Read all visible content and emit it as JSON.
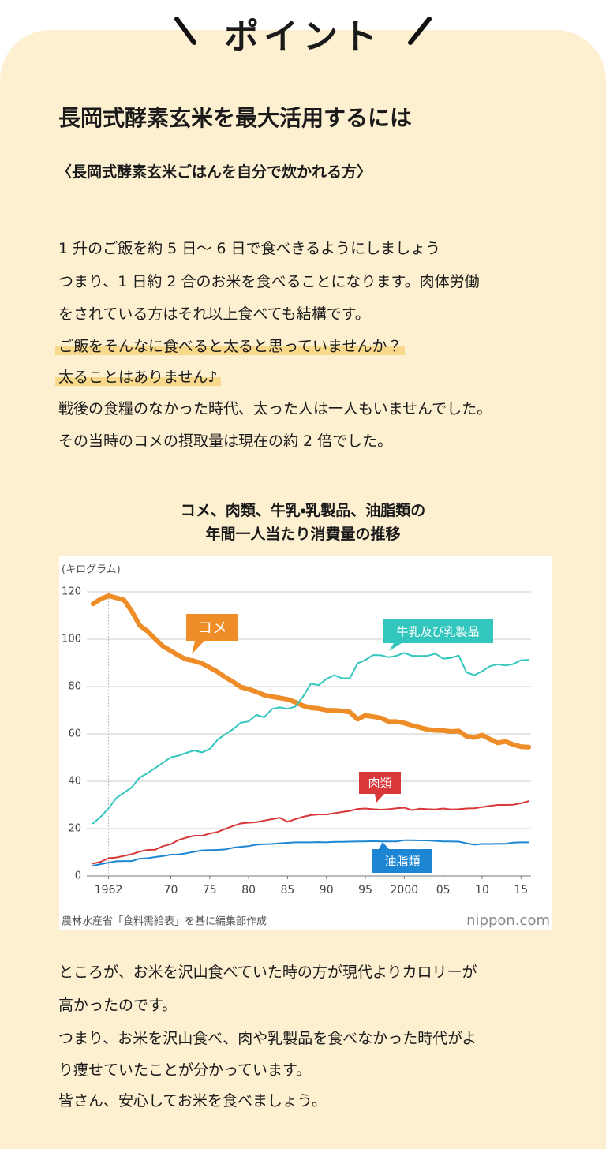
{
  "header": {
    "label": "ポイント"
  },
  "heading": "長岡式酵素玄米を最大活用するには",
  "subheading": "〈長岡式酵素玄米ごはんを自分で炊かれる方〉",
  "paragraphs_1": [
    "1 升のご飯を約 5 日〜 6 日で食べきるようにしましょう",
    "つまり、1 日約 2 合のお米を食べることになります。肉体労働",
    "をされている方はそれ以上食べても結構です。",
    "ご飯をそんなに食べると太ると思っていませんか？",
    "太ることはありません♪",
    "戦後の食糧のなかった時代、太った人は一人もいませんでした。",
    "その当時のコメの摂取量は現在の約 2 倍でした。"
  ],
  "chart_data": {
    "type": "line",
    "title": [
      "コメ、肉類、牛乳・乳製品、油脂類の",
      "年間一人当たり消費量の推移"
    ],
    "y_label": "(キログラム)",
    "x": [
      1960,
      1961,
      1962,
      1963,
      1964,
      1965,
      1966,
      1967,
      1968,
      1969,
      1970,
      1971,
      1972,
      1973,
      1974,
      1975,
      1976,
      1977,
      1978,
      1979,
      1980,
      1981,
      1982,
      1983,
      1984,
      1985,
      1986,
      1987,
      1988,
      1989,
      1990,
      1991,
      1992,
      1993,
      1994,
      1995,
      1996,
      1997,
      1998,
      1999,
      2000,
      2001,
      2002,
      2003,
      2004,
      2005,
      2006,
      2007,
      2008,
      2009,
      2010,
      2011,
      2012,
      2013,
      2014,
      2015,
      2016
    ],
    "xlim": [
      1959,
      2017
    ],
    "xticks": [
      1962,
      {
        "value": 1970,
        "label": "70"
      },
      {
        "value": 1975,
        "label": "75"
      },
      {
        "value": 1980,
        "label": "80"
      },
      {
        "value": 1985,
        "label": "85"
      },
      {
        "value": 1990,
        "label": "90"
      },
      {
        "value": 1995,
        "label": "95"
      },
      2000,
      {
        "value": 2005,
        "label": "05"
      },
      {
        "value": 2010,
        "label": "10"
      },
      {
        "value": 2015,
        "label": "15"
      }
    ],
    "ylim": [
      0,
      120
    ],
    "yticks": [
      0,
      20,
      40,
      60,
      80,
      100,
      120
    ],
    "grid": true,
    "series": [
      {
        "name": "コメ",
        "color": "#ee8c27",
        "values": [
          114.9,
          117.0,
          118.3,
          117.5,
          116.5,
          111.7,
          105.8,
          103.4,
          100.1,
          97.0,
          95.1,
          93.1,
          91.5,
          90.8,
          89.8,
          88.0,
          86.2,
          83.9,
          82.0,
          79.8,
          78.9,
          77.8,
          76.4,
          75.7,
          75.2,
          74.6,
          73.4,
          71.9,
          71.0,
          70.7,
          70.0,
          69.9,
          69.7,
          69.2,
          66.2,
          67.8,
          67.3,
          66.7,
          65.2,
          65.2,
          64.6,
          63.6,
          62.7,
          61.9,
          61.5,
          61.4,
          61.0,
          61.2,
          59.0,
          58.5,
          59.5,
          57.8,
          56.2,
          56.8,
          55.5,
          54.6,
          54.4
        ]
      },
      {
        "name": "牛乳及び乳製品",
        "color": "#33c6bd",
        "values": [
          22.2,
          25.0,
          28.6,
          32.9,
          35.2,
          37.5,
          41.6,
          43.4,
          45.6,
          47.8,
          50.1,
          50.8,
          52.0,
          53.0,
          52.2,
          53.6,
          57.5,
          59.8,
          62.0,
          64.7,
          65.3,
          68.0,
          67.0,
          70.5,
          71.2,
          70.6,
          71.5,
          75.8,
          81.2,
          80.6,
          83.2,
          84.8,
          83.5,
          83.5,
          89.8,
          91.2,
          93.3,
          93.2,
          92.4,
          93.0,
          94.2,
          93.0,
          92.9,
          93.0,
          93.9,
          91.8,
          92.1,
          93.1,
          86.0,
          84.8,
          86.4,
          88.6,
          89.4,
          88.9,
          89.5,
          91.1,
          91.3
        ]
      },
      {
        "name": "肉類",
        "color": "#d8383a",
        "values": [
          5.2,
          6.0,
          7.5,
          7.8,
          8.5,
          9.2,
          10.3,
          11.0,
          11.1,
          12.6,
          13.4,
          15.2,
          16.2,
          17.0,
          17.0,
          17.9,
          18.6,
          19.9,
          21.1,
          22.2,
          22.5,
          22.7,
          23.4,
          24.0,
          24.6,
          22.9,
          24.0,
          25.0,
          25.7,
          26.0,
          26.0,
          26.5,
          27.0,
          27.5,
          28.3,
          28.5,
          28.2,
          28.0,
          28.2,
          28.6,
          28.8,
          27.8,
          28.4,
          28.2,
          28.1,
          28.5,
          28.1,
          28.2,
          28.5,
          28.6,
          29.1,
          29.6,
          30.0,
          30.0,
          30.1,
          30.7,
          31.6
        ]
      },
      {
        "name": "油脂類",
        "color": "#1d86d4",
        "values": [
          4.3,
          5.0,
          5.6,
          6.2,
          6.3,
          6.3,
          7.3,
          7.5,
          8.0,
          8.4,
          9.0,
          9.1,
          9.6,
          10.2,
          10.8,
          10.9,
          11.0,
          11.2,
          11.9,
          12.3,
          12.6,
          13.2,
          13.4,
          13.5,
          13.8,
          14.0,
          14.2,
          14.2,
          14.2,
          14.3,
          14.2,
          14.4,
          14.4,
          14.5,
          14.6,
          14.6,
          14.7,
          14.6,
          14.6,
          14.6,
          15.1,
          15.1,
          15.0,
          15.0,
          14.8,
          14.6,
          14.6,
          14.5,
          13.8,
          13.2,
          13.5,
          13.5,
          13.6,
          13.6,
          14.1,
          14.2,
          14.2
        ]
      }
    ],
    "source": "農林水産省「食料需給表」を基に編集部作成",
    "brand": "nippon.com"
  },
  "paragraphs_2": [
    "ところが、お米を沢山食べていた時の方が現代よりカロリーが",
    "高かったのです。",
    "つまり、お米を沢山食べ、肉や乳製品を食べなかった時代がよ",
    "り痩せていたことが分かっています。",
    "皆さん、安心してお米を食べましょう。"
  ]
}
